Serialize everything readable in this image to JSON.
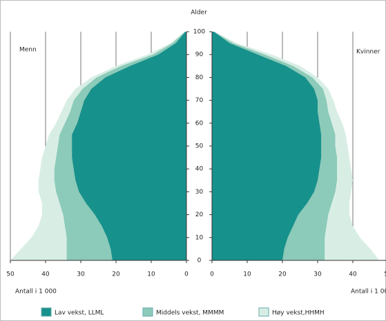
{
  "chart_data": {
    "type": "pyramid",
    "y_axis_title": "Alder",
    "x_axis_title": "Antall i 1 000",
    "men_label": "Menn",
    "women_label": "Kvinner",
    "ages": [
      0,
      5,
      10,
      15,
      20,
      25,
      30,
      35,
      40,
      45,
      50,
      55,
      60,
      65,
      70,
      75,
      80,
      85,
      90,
      95,
      100
    ],
    "ylim": [
      0,
      100
    ],
    "yticks": [
      0,
      10,
      20,
      30,
      40,
      50,
      60,
      70,
      80,
      90,
      100
    ],
    "xlim": [
      0,
      50
    ],
    "xticks": [
      0,
      10,
      20,
      30,
      40,
      50
    ],
    "grid": true,
    "series": [
      {
        "name": "Lav vekst, LLML",
        "color": "#17918c",
        "men": [
          21,
          21.5,
          22.5,
          24,
          26,
          28.5,
          30.5,
          31.5,
          32,
          32.5,
          32.5,
          32.5,
          31,
          30,
          29,
          27,
          23,
          16,
          8,
          3,
          0.3
        ],
        "women": [
          20,
          20.5,
          21.5,
          23,
          24.5,
          27,
          29,
          30,
          30.5,
          31,
          31,
          31,
          30.5,
          30,
          30,
          29,
          26.5,
          21,
          13,
          5,
          0.5
        ]
      },
      {
        "name": "Middels vekst, MMMM",
        "color": "#8ccab9",
        "men": [
          34,
          34,
          34,
          34.5,
          35,
          36,
          37,
          37.5,
          37.5,
          37,
          36.5,
          36,
          34.5,
          33,
          32,
          29.5,
          25.5,
          18.5,
          9.5,
          4,
          0.4
        ],
        "women": [
          32,
          32,
          32,
          32.5,
          33,
          34,
          35,
          35.5,
          35.5,
          35.5,
          35,
          35,
          34,
          33,
          32.5,
          31.5,
          28.5,
          23,
          15,
          6,
          0.6
        ]
      },
      {
        "name": "Høy vekst,HHMH",
        "color": "#d8eee5",
        "men": [
          50,
          47,
          44,
          42,
          41,
          41,
          42,
          42,
          41.5,
          41,
          40,
          39,
          37,
          35.5,
          34,
          31.5,
          27,
          20,
          11,
          4.5,
          0.5
        ],
        "women": [
          47.5,
          45,
          42,
          40,
          39,
          39,
          39.5,
          40,
          39.5,
          39,
          38.5,
          38,
          37,
          35.5,
          34.5,
          33,
          30,
          25,
          17,
          7,
          0.8
        ]
      }
    ]
  }
}
